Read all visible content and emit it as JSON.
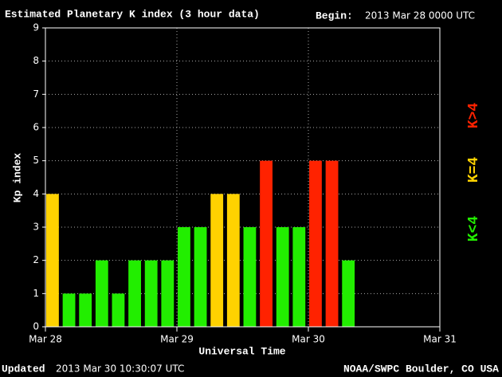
{
  "chart_data": {
    "type": "bar",
    "title": "Estimated Planetary K index (3 hour data)",
    "begin_label": "Begin:",
    "begin": "2013 Mar 28 0000 UTC",
    "xlabel": "Universal Time",
    "ylabel": "Kp index",
    "updated_label": "Updated",
    "updated": "2013 Mar 30 10:30:07 UTC",
    "source": "NOAA/SWPC Boulder, CO USA",
    "x": [
      0,
      3,
      6,
      9,
      12,
      15,
      18,
      21,
      24,
      27,
      30,
      33,
      36,
      39,
      42,
      45,
      48,
      51,
      54
    ],
    "values": [
      4,
      1,
      1,
      2,
      1,
      2,
      2,
      2,
      3,
      3,
      4,
      4,
      3,
      5,
      3,
      3,
      5,
      5,
      2
    ],
    "colors": [
      "#ffd200",
      "#22ee00",
      "#22ee00",
      "#22ee00",
      "#22ee00",
      "#22ee00",
      "#22ee00",
      "#22ee00",
      "#22ee00",
      "#22ee00",
      "#ffd200",
      "#ffd200",
      "#22ee00",
      "#ff2200",
      "#22ee00",
      "#22ee00",
      "#ff2200",
      "#ff2200",
      "#22ee00"
    ],
    "legend": [
      {
        "label": "K<4",
        "color": "#22ee00"
      },
      {
        "label": "K=4",
        "color": "#ffd200"
      },
      {
        "label": "K>4",
        "color": "#ff2200"
      }
    ],
    "xlim": [
      0,
      72
    ],
    "xticks": [
      {
        "value": 0,
        "label": "Mar 28"
      },
      {
        "value": 24,
        "label": "Mar 29"
      },
      {
        "value": 48,
        "label": "Mar 30"
      },
      {
        "value": 72,
        "label": "Mar 31"
      }
    ],
    "ylim": [
      0,
      9
    ],
    "yticks": [
      0,
      1,
      2,
      3,
      4,
      5,
      6,
      7,
      8,
      9
    ],
    "grid": true
  }
}
